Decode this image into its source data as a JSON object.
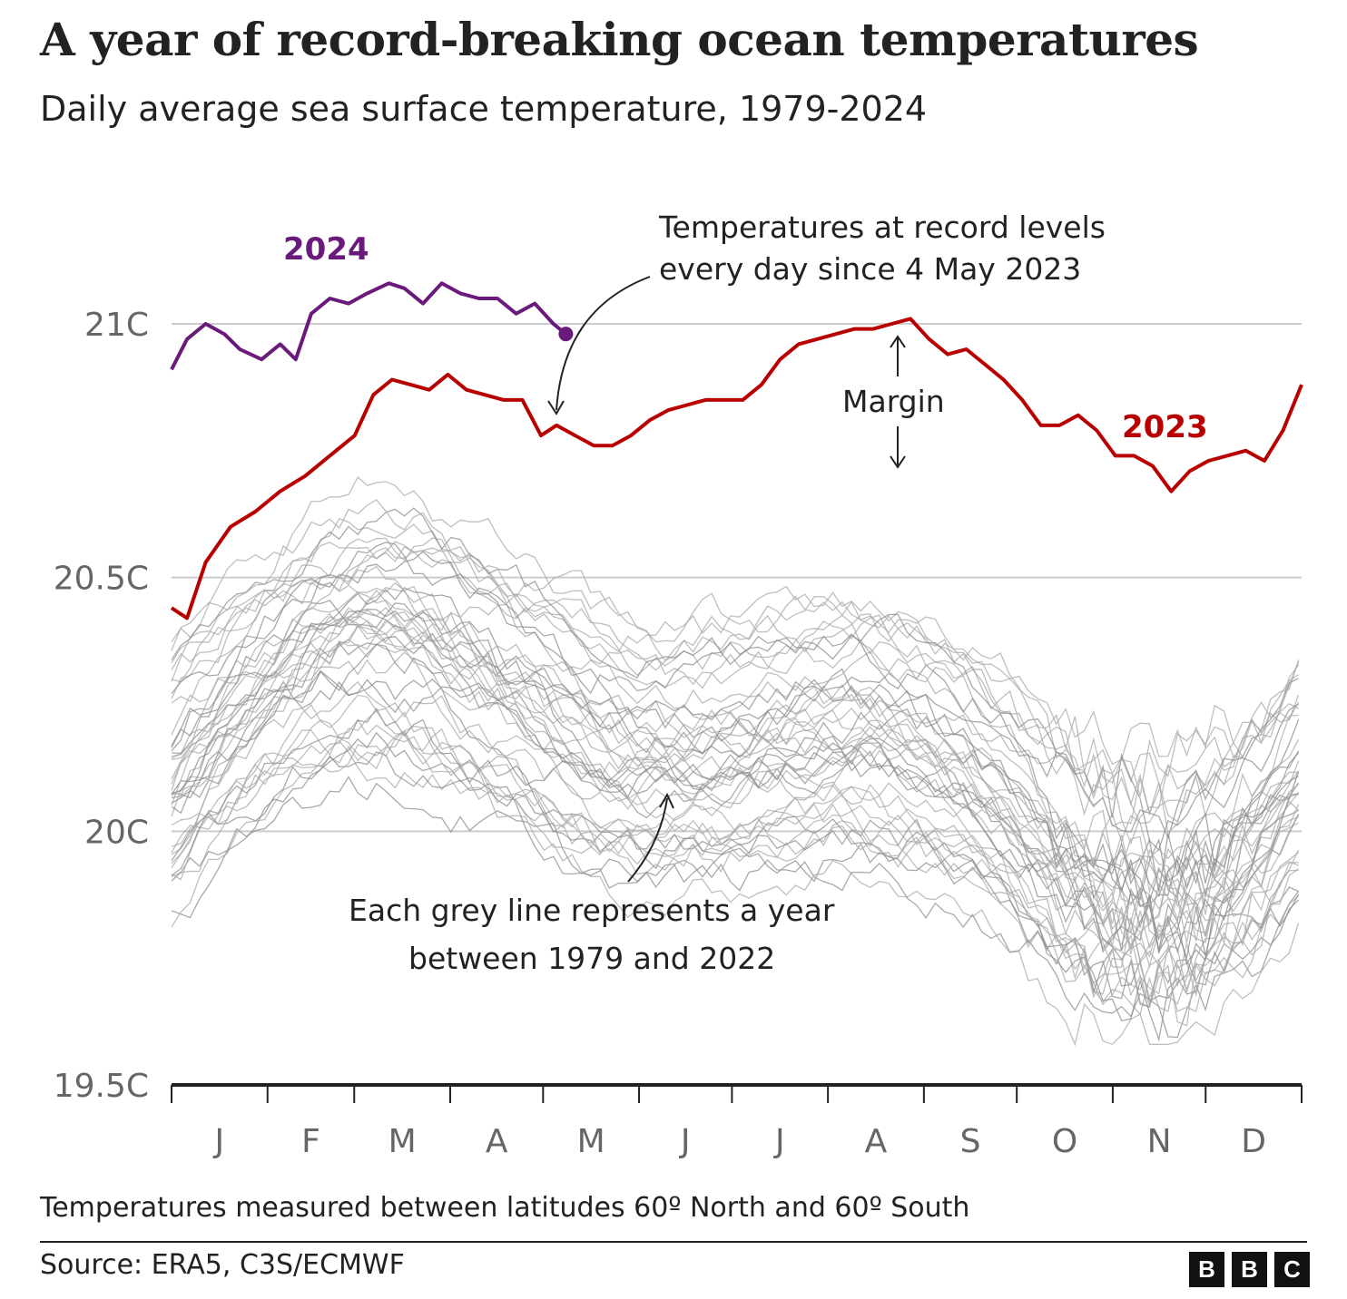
{
  "title": "A year of record-breaking ocean temperatures",
  "subtitle": "Daily average sea surface temperature, 1979-2024",
  "note": "Temperatures measured between latitudes 60º North and 60º South",
  "source": "Source: ERA5, C3S/ECMWF",
  "logo_letters": [
    "B",
    "B",
    "C"
  ],
  "colors": {
    "series_2024": "#6a1a7a",
    "series_2023": "#b80000",
    "grey_years": "#aaaaaa",
    "gridline": "#cccccc",
    "axis": "#222222"
  },
  "annotations": {
    "record_line1": "Temperatures at record levels",
    "record_line2": "every day since 4 May 2023",
    "margin": "Margin",
    "grey_line1": "Each grey line represents a year",
    "grey_line2": "between 1979 and 2022"
  },
  "chart_data": {
    "type": "line",
    "ylim": [
      19.5,
      21.0
    ],
    "yticks": [
      19.5,
      20,
      20.5,
      21
    ],
    "ytick_labels": [
      "19.5C",
      "20C",
      "20.5C",
      "21C"
    ],
    "month_labels": [
      "J",
      "F",
      "M",
      "A",
      "M",
      "J",
      "J",
      "A",
      "S",
      "O",
      "N",
      "D"
    ],
    "x_unit": "day of year",
    "grid": true,
    "series": [
      {
        "name": "2024",
        "x": [
          1,
          6,
          12,
          18,
          23,
          30,
          36,
          41,
          46,
          52,
          58,
          64,
          71,
          76,
          82,
          88,
          94,
          100,
          106,
          112,
          118,
          124,
          128
        ],
        "y": [
          20.91,
          20.97,
          21.0,
          20.98,
          20.95,
          20.93,
          20.96,
          20.93,
          21.02,
          21.05,
          21.04,
          21.06,
          21.08,
          21.07,
          21.04,
          21.08,
          21.06,
          21.05,
          21.05,
          21.02,
          21.04,
          21.0,
          20.98
        ]
      },
      {
        "name": "2023",
        "x": [
          1,
          6,
          12,
          20,
          28,
          36,
          44,
          52,
          60,
          66,
          72,
          78,
          84,
          90,
          96,
          102,
          108,
          114,
          120,
          125,
          131,
          137,
          143,
          149,
          155,
          161,
          167,
          173,
          179,
          185,
          191,
          197,
          203,
          209,
          215,
          221,
          227,
          233,
          239,
          245,
          251,
          257,
          263,
          269,
          275,
          281,
          287,
          293,
          299,
          305,
          311,
          317,
          323,
          329,
          335,
          341,
          347,
          353,
          359,
          365
        ],
        "y": [
          20.44,
          20.42,
          20.53,
          20.6,
          20.63,
          20.67,
          20.7,
          20.74,
          20.78,
          20.86,
          20.89,
          20.88,
          20.87,
          20.9,
          20.87,
          20.86,
          20.85,
          20.85,
          20.78,
          20.8,
          20.78,
          20.76,
          20.76,
          20.78,
          20.81,
          20.83,
          20.84,
          20.85,
          20.85,
          20.85,
          20.88,
          20.93,
          20.96,
          20.97,
          20.98,
          20.99,
          20.99,
          21.0,
          21.01,
          20.97,
          20.94,
          20.95,
          20.92,
          20.89,
          20.85,
          20.8,
          20.8,
          20.82,
          20.79,
          20.74,
          20.74,
          20.72,
          20.67,
          20.71,
          20.73,
          20.74,
          20.75,
          20.73,
          20.79,
          20.88
        ]
      }
    ]
  }
}
